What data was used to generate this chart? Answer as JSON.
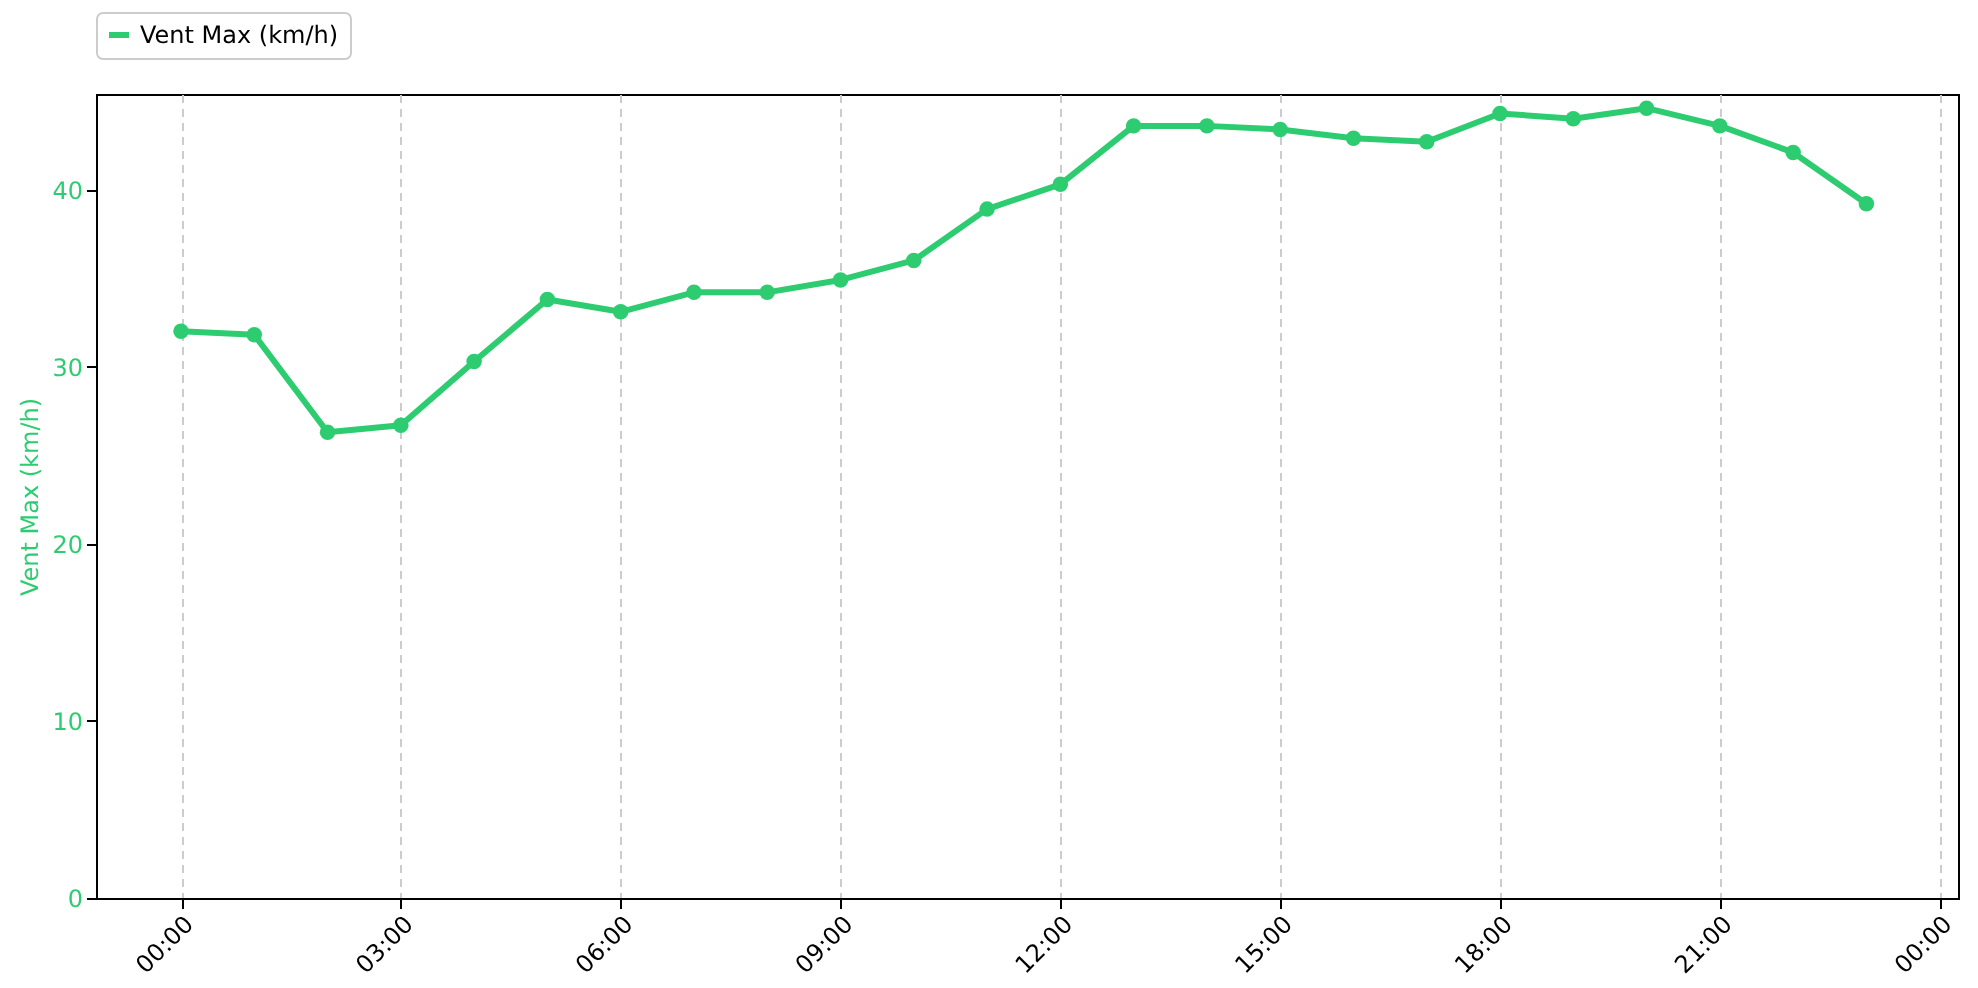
{
  "chart_data": {
    "type": "line",
    "x": [
      0,
      1,
      2,
      3,
      4,
      5,
      6,
      7,
      8,
      9,
      10,
      11,
      12,
      13,
      14,
      15,
      16,
      17,
      18,
      19,
      20,
      21,
      22,
      23
    ],
    "series": [
      {
        "name": "Vent Max (km/h)",
        "color": "#2ecc71",
        "values": [
          32.0,
          31.8,
          26.3,
          26.7,
          30.3,
          33.8,
          33.1,
          34.2,
          34.2,
          34.9,
          36.0,
          38.9,
          40.3,
          43.6,
          43.6,
          43.4,
          42.9,
          42.7,
          44.3,
          44.0,
          44.6,
          43.6,
          42.1,
          39.2
        ]
      }
    ],
    "ylabel": "Vent Max (km/h)",
    "xlim": [
      -1.16,
      24.25
    ],
    "xticks": [
      {
        "value": 0,
        "label": "00:00"
      },
      {
        "value": 3,
        "label": "03:00"
      },
      {
        "value": 6,
        "label": "06:00"
      },
      {
        "value": 9,
        "label": "09:00"
      },
      {
        "value": 12,
        "label": "12:00"
      },
      {
        "value": 15,
        "label": "15:00"
      },
      {
        "value": 18,
        "label": "18:00"
      },
      {
        "value": 21,
        "label": "21:00"
      },
      {
        "value": 24,
        "label": "00:00"
      }
    ],
    "ylim": [
      0,
      45.4
    ],
    "yticks": [
      0,
      10,
      20,
      30,
      40
    ],
    "grid": "x",
    "legend": "top left",
    "marker": "circle",
    "line_style": "solid"
  }
}
